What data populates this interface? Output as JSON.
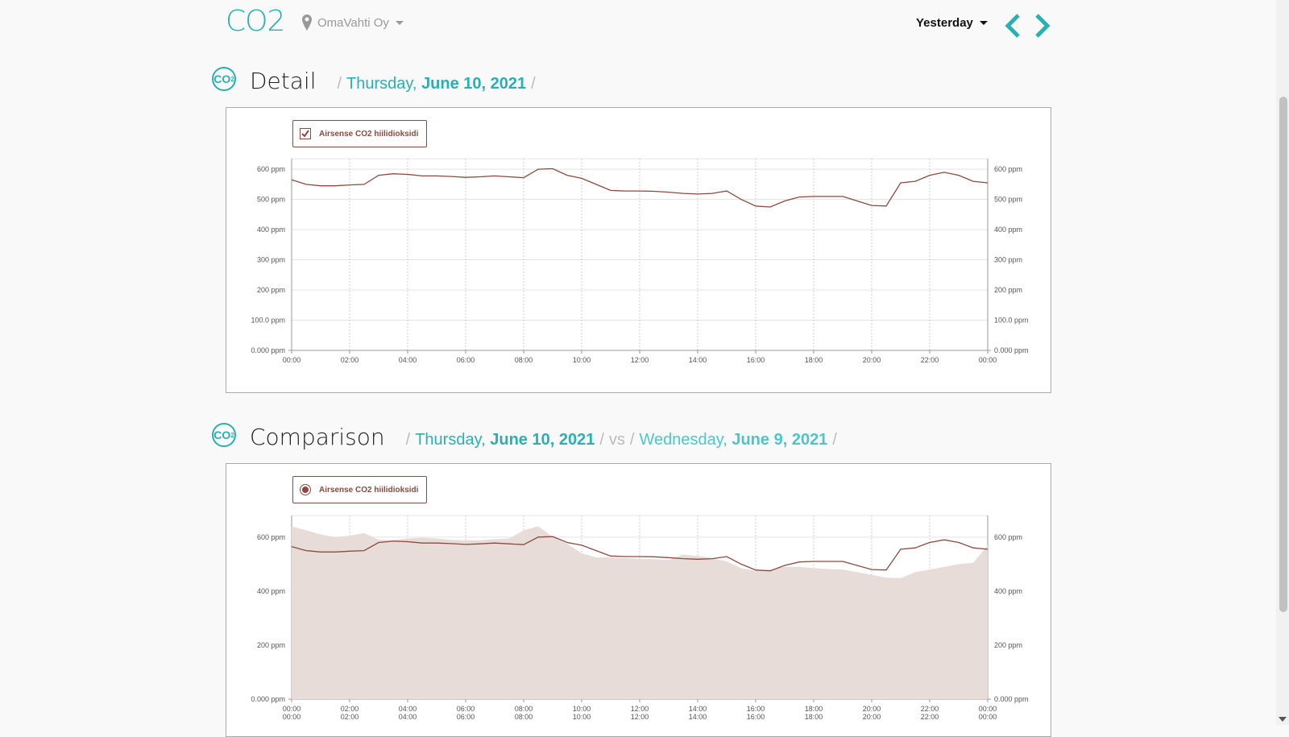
{
  "header": {
    "title": "CO2",
    "location": "OmaVahti Oy",
    "period": "Yesterday",
    "icons": [
      "map-pin-icon",
      "chevron-left-icon",
      "chevron-right-icon"
    ]
  },
  "detail": {
    "badge": "CO",
    "badge_sub": "2",
    "heading": "Detail",
    "day": "Thursday,",
    "date": "June 10, 2021",
    "legend": "Airsense CO2 hiilidioksidi"
  },
  "comparison": {
    "badge": "CO",
    "badge_sub": "2",
    "heading": "Comparison",
    "day1": "Thursday,",
    "date1": "June 10, 2021",
    "vs": "vs",
    "day2": "Wednesday,",
    "date2": "June 9, 2021",
    "legend": "Airsense CO2 hiilidioksidi"
  },
  "colors": {
    "accent": "#2ab0b0",
    "series": "#8b4a40",
    "comparison_fill": "#e8dcd9"
  },
  "chart_data": [
    {
      "type": "line",
      "title": "",
      "x": [
        "00:00",
        "00:30",
        "01:00",
        "01:30",
        "02:00",
        "02:30",
        "03:00",
        "03:30",
        "04:00",
        "04:30",
        "05:00",
        "05:30",
        "06:00",
        "06:30",
        "07:00",
        "07:30",
        "08:00",
        "08:30",
        "09:00",
        "09:30",
        "10:00",
        "10:30",
        "11:00",
        "11:30",
        "12:00",
        "12:30",
        "13:00",
        "13:30",
        "14:00",
        "14:30",
        "15:00",
        "15:30",
        "16:00",
        "16:30",
        "17:00",
        "17:30",
        "18:00",
        "18:30",
        "19:00",
        "19:30",
        "20:00",
        "20:30",
        "21:00",
        "21:30",
        "22:00",
        "22:30",
        "23:00",
        "23:30",
        "24:00"
      ],
      "xticks": [
        "00:00",
        "02:00",
        "04:00",
        "06:00",
        "08:00",
        "10:00",
        "12:00",
        "14:00",
        "16:00",
        "18:00",
        "20:00",
        "22:00",
        "00:00"
      ],
      "series": [
        {
          "name": "Airsense CO2 hiilidioksidi",
          "values": [
            565,
            550,
            545,
            545,
            548,
            550,
            580,
            585,
            583,
            578,
            578,
            576,
            573,
            575,
            578,
            575,
            572,
            600,
            602,
            580,
            570,
            550,
            530,
            528,
            528,
            527,
            524,
            520,
            518,
            520,
            528,
            500,
            478,
            475,
            495,
            508,
            510,
            510,
            510,
            495,
            480,
            478,
            555,
            560,
            580,
            590,
            580,
            560,
            555
          ]
        }
      ],
      "yticks": [
        "0.000 ppm",
        "100.0 ppm",
        "200 ppm",
        "300 ppm",
        "400 ppm",
        "500 ppm",
        "600 ppm"
      ],
      "ylim": [
        0,
        635
      ]
    },
    {
      "type": "area",
      "title": "",
      "x": [
        "00:00",
        "00:30",
        "01:00",
        "01:30",
        "02:00",
        "02:30",
        "03:00",
        "03:30",
        "04:00",
        "04:30",
        "05:00",
        "05:30",
        "06:00",
        "06:30",
        "07:00",
        "07:30",
        "08:00",
        "08:30",
        "09:00",
        "09:30",
        "10:00",
        "10:30",
        "11:00",
        "11:30",
        "12:00",
        "12:30",
        "13:00",
        "13:30",
        "14:00",
        "14:30",
        "15:00",
        "15:30",
        "16:00",
        "16:30",
        "17:00",
        "17:30",
        "18:00",
        "18:30",
        "19:00",
        "19:30",
        "20:00",
        "20:30",
        "21:00",
        "21:30",
        "22:00",
        "22:30",
        "23:00",
        "23:30",
        "24:00"
      ],
      "xticks": [
        "00:00",
        "02:00",
        "04:00",
        "06:00",
        "08:00",
        "10:00",
        "12:00",
        "14:00",
        "16:00",
        "18:00",
        "20:00",
        "22:00",
        "00:00"
      ],
      "series": [
        {
          "name": "Airsense CO2 hiilidioksidi",
          "values": [
            565,
            550,
            545,
            545,
            548,
            550,
            580,
            585,
            583,
            578,
            578,
            576,
            573,
            575,
            578,
            575,
            572,
            600,
            602,
            580,
            570,
            550,
            530,
            528,
            528,
            527,
            524,
            520,
            518,
            520,
            528,
            500,
            478,
            475,
            495,
            508,
            510,
            510,
            510,
            495,
            480,
            478,
            555,
            560,
            580,
            590,
            580,
            560,
            555
          ]
        },
        {
          "name": "",
          "values": [
            640,
            625,
            610,
            600,
            605,
            615,
            590,
            590,
            595,
            598,
            595,
            590,
            588,
            588,
            592,
            595,
            625,
            640,
            600,
            575,
            540,
            525,
            525,
            522,
            520,
            518,
            515,
            535,
            530,
            522,
            510,
            485,
            475,
            480,
            490,
            490,
            485,
            482,
            480,
            470,
            460,
            450,
            448,
            470,
            480,
            490,
            500,
            505,
            570
          ]
        }
      ],
      "yticks": [
        "0.000 ppm",
        "200 ppm",
        "400 ppm",
        "600 ppm"
      ],
      "ylim": [
        0,
        680
      ]
    }
  ]
}
